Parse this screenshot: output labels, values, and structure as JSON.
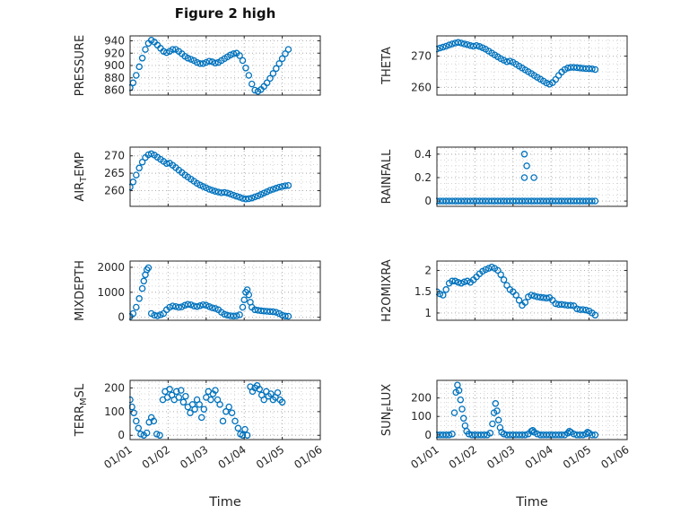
{
  "title": "Figure 2 high",
  "style": {
    "marker_color": "#0072BD",
    "axis_color": "#262626",
    "grid_major_color": "#b0b0b0",
    "grid_minor_color": "#d4d4d4",
    "plot_bg": "#ffffff"
  },
  "time_axis": {
    "label": "Time",
    "ticklabels": [
      "01/01",
      "01/02",
      "01/03",
      "01/04",
      "01/05",
      "01/06"
    ]
  },
  "chart_data": [
    {
      "type": "scatter",
      "ylabel": "PRESSURE",
      "ylabel_parts": [
        {
          "text": "PRESSURE",
          "sub": false
        }
      ],
      "yticks": [
        860,
        880,
        900,
        920,
        940
      ],
      "yticklabels": [
        "860",
        "880",
        "900",
        "920",
        "940"
      ],
      "ylim": [
        852,
        948
      ],
      "yminor": 10,
      "xlim": [
        0,
        5
      ],
      "xticks": [
        0,
        1,
        2,
        3,
        4,
        5
      ],
      "xminor": 0.25,
      "x": [
        0,
        0.08,
        0.16,
        0.24,
        0.32,
        0.4,
        0.48,
        0.56,
        0.64,
        0.72,
        0.8,
        0.88,
        0.96,
        1.04,
        1.12,
        1.2,
        1.28,
        1.36,
        1.44,
        1.52,
        1.6,
        1.68,
        1.76,
        1.84,
        1.92,
        2,
        2.08,
        2.16,
        2.24,
        2.32,
        2.4,
        2.48,
        2.56,
        2.64,
        2.72,
        2.8,
        2.88,
        2.96,
        3.04,
        3.12,
        3.2,
        3.28,
        3.36,
        3.44,
        3.52,
        3.6,
        3.68,
        3.76,
        3.84,
        3.92,
        4,
        4.08,
        4.16
      ],
      "y": [
        864,
        872,
        884,
        898,
        912,
        926,
        936,
        941,
        938,
        933,
        928,
        923,
        921,
        923,
        926,
        926,
        923,
        919,
        915,
        912,
        910,
        908,
        905,
        903,
        903,
        905,
        907,
        906,
        904,
        905,
        908,
        911,
        914,
        917,
        919,
        920,
        916,
        908,
        896,
        884,
        870,
        860,
        858,
        861,
        866,
        872,
        879,
        887,
        895,
        903,
        911,
        919,
        926
      ]
    },
    {
      "type": "scatter",
      "ylabel": "THETA",
      "ylabel_parts": [
        {
          "text": "THETA",
          "sub": false
        }
      ],
      "yticks": [
        260,
        270
      ],
      "yticklabels": [
        "260",
        "270"
      ],
      "ylim": [
        257.5,
        276.5
      ],
      "yminor": 2.5,
      "xlim": [
        0,
        5
      ],
      "xticks": [
        0,
        1,
        2,
        3,
        4,
        5
      ],
      "xminor": 0.25,
      "x": [
        0,
        0.08,
        0.16,
        0.24,
        0.32,
        0.4,
        0.48,
        0.56,
        0.64,
        0.72,
        0.8,
        0.88,
        0.96,
        1.04,
        1.12,
        1.2,
        1.28,
        1.36,
        1.44,
        1.52,
        1.6,
        1.68,
        1.76,
        1.84,
        1.92,
        2,
        2.08,
        2.16,
        2.24,
        2.32,
        2.4,
        2.48,
        2.56,
        2.64,
        2.72,
        2.8,
        2.88,
        2.96,
        3.04,
        3.12,
        3.2,
        3.28,
        3.36,
        3.44,
        3.52,
        3.6,
        3.68,
        3.76,
        3.84,
        3.92,
        4,
        4.08,
        4.16
      ],
      "y": [
        272.3,
        272.6,
        272.9,
        273.2,
        273.6,
        273.9,
        274.2,
        274.4,
        274.2,
        273.9,
        273.7,
        273.4,
        273.2,
        273.4,
        273.1,
        272.7,
        272.2,
        271.6,
        271,
        270.4,
        269.8,
        269.2,
        268.7,
        268.2,
        268.4,
        268,
        267.4,
        266.8,
        266.2,
        265.6,
        265,
        264.4,
        263.8,
        263.2,
        262.6,
        262,
        261.4,
        261,
        261.5,
        262.5,
        263.8,
        264.9,
        265.7,
        266.2,
        266.4,
        266.4,
        266.3,
        266.2,
        266.1,
        266,
        266,
        265.9,
        265.7
      ]
    },
    {
      "type": "scatter",
      "ylabel": "AIR_TEMP",
      "ylabel_parts": [
        {
          "text": "AIR",
          "sub": false
        },
        {
          "text": "T",
          "sub": true
        },
        {
          "text": "EMP",
          "sub": false
        }
      ],
      "yticks": [
        260,
        265,
        270
      ],
      "yticklabels": [
        "260",
        "265",
        "270"
      ],
      "ylim": [
        255.5,
        272.5
      ],
      "yminor": 2.5,
      "xlim": [
        0,
        5
      ],
      "xticks": [
        0,
        1,
        2,
        3,
        4,
        5
      ],
      "xminor": 0.25,
      "x": [
        0,
        0.08,
        0.16,
        0.24,
        0.32,
        0.4,
        0.48,
        0.56,
        0.64,
        0.72,
        0.8,
        0.88,
        0.96,
        1.04,
        1.12,
        1.2,
        1.28,
        1.36,
        1.44,
        1.52,
        1.6,
        1.68,
        1.76,
        1.84,
        1.92,
        2,
        2.08,
        2.16,
        2.24,
        2.32,
        2.4,
        2.48,
        2.56,
        2.64,
        2.72,
        2.8,
        2.88,
        2.96,
        3.04,
        3.12,
        3.2,
        3.28,
        3.36,
        3.44,
        3.52,
        3.6,
        3.68,
        3.76,
        3.84,
        3.92,
        4,
        4.08,
        4.16
      ],
      "y": [
        261,
        262.5,
        264.5,
        266.5,
        268.2,
        269.5,
        270.3,
        270.6,
        270.2,
        269.6,
        269,
        268.4,
        267.8,
        267.9,
        267.3,
        266.6,
        265.9,
        265.2,
        264.5,
        263.9,
        263.3,
        262.7,
        262.1,
        261.6,
        261.2,
        260.8,
        260.4,
        260.1,
        259.8,
        259.6,
        259.4,
        259.5,
        259.3,
        259,
        258.7,
        258.4,
        258.1,
        257.8,
        257.6,
        257.7,
        257.9,
        258.2,
        258.5,
        258.9,
        259.3,
        259.7,
        260.1,
        260.4,
        260.7,
        261,
        261.2,
        261.4,
        261.5
      ]
    },
    {
      "type": "scatter",
      "ylabel": "RAINFALL",
      "ylabel_parts": [
        {
          "text": "RAINFALL",
          "sub": false
        }
      ],
      "yticks": [
        0,
        0.2,
        0.4
      ],
      "yticklabels": [
        "0",
        "0.2",
        "0.4"
      ],
      "ylim": [
        -0.045,
        0.46
      ],
      "yminor": 0.05,
      "xlim": [
        0,
        5
      ],
      "xticks": [
        0,
        1,
        2,
        3,
        4,
        5
      ],
      "xminor": 0.25,
      "x": [
        0,
        0.08,
        0.16,
        0.24,
        0.32,
        0.4,
        0.48,
        0.56,
        0.64,
        0.72,
        0.8,
        0.88,
        0.96,
        1.04,
        1.12,
        1.2,
        1.28,
        1.36,
        1.44,
        1.52,
        1.6,
        1.68,
        1.76,
        1.84,
        1.92,
        2,
        2.08,
        2.16,
        2.24,
        2.32,
        2.4,
        2.48,
        2.56,
        2.64,
        2.72,
        2.8,
        2.88,
        2.96,
        3.04,
        3.12,
        3.2,
        3.28,
        3.36,
        3.44,
        3.52,
        3.6,
        3.68,
        3.76,
        3.84,
        3.92,
        4,
        4.08,
        4.16,
        2.3,
        2.36,
        2.3,
        2.55
      ],
      "y": [
        0,
        0,
        0,
        0,
        0,
        0,
        0,
        0,
        0,
        0,
        0,
        0,
        0,
        0,
        0,
        0,
        0,
        0,
        0,
        0,
        0,
        0,
        0,
        0,
        0,
        0,
        0,
        0,
        0,
        0,
        0,
        0,
        0,
        0,
        0,
        0,
        0,
        0,
        0,
        0,
        0,
        0,
        0,
        0,
        0,
        0,
        0,
        0,
        0,
        0,
        0,
        0,
        0,
        0.4,
        0.3,
        0.2,
        0.2
      ]
    },
    {
      "type": "scatter",
      "ylabel": "MIXDEPTH",
      "ylabel_parts": [
        {
          "text": "MIXDEPTH",
          "sub": false
        }
      ],
      "yticks": [
        0,
        1000,
        2000
      ],
      "yticklabels": [
        "0",
        "1000",
        "2000"
      ],
      "ylim": [
        -120,
        2250
      ],
      "yminor": 250,
      "xlim": [
        0,
        5
      ],
      "xticks": [
        0,
        1,
        2,
        3,
        4,
        5
      ],
      "xminor": 0.25,
      "x": [
        0,
        0.08,
        0.16,
        0.24,
        0.32,
        0.36,
        0.4,
        0.44,
        0.48,
        0.56,
        0.64,
        0.72,
        0.8,
        0.88,
        0.96,
        1.04,
        1.12,
        1.2,
        1.28,
        1.36,
        1.44,
        1.52,
        1.6,
        1.68,
        1.76,
        1.84,
        1.92,
        2,
        2.08,
        2.16,
        2.24,
        2.32,
        2.4,
        2.48,
        2.56,
        2.64,
        2.72,
        2.8,
        2.88,
        2.96,
        3,
        3.04,
        3.08,
        3.12,
        3.16,
        3.2,
        3.28,
        3.36,
        3.44,
        3.52,
        3.6,
        3.68,
        3.76,
        3.84,
        3.92,
        4,
        4.08,
        4.16
      ],
      "y": [
        30,
        150,
        400,
        750,
        1150,
        1450,
        1700,
        1900,
        1980,
        150,
        80,
        60,
        100,
        150,
        300,
        400,
        450,
        430,
        400,
        420,
        480,
        520,
        500,
        450,
        430,
        460,
        500,
        480,
        430,
        380,
        350,
        300,
        200,
        120,
        80,
        60,
        50,
        60,
        100,
        400,
        700,
        1000,
        1100,
        900,
        600,
        400,
        300,
        280,
        260,
        250,
        240,
        230,
        220,
        200,
        150,
        80,
        50,
        40
      ]
    },
    {
      "type": "scatter",
      "ylabel": "H2OMIXRA",
      "ylabel_parts": [
        {
          "text": "H2OMIXRA",
          "sub": false
        }
      ],
      "yticks": [
        1,
        1.5,
        2
      ],
      "yticklabels": [
        "1",
        "1.5",
        "2"
      ],
      "ylim": [
        0.83,
        2.22
      ],
      "yminor": 0.125,
      "xlim": [
        0,
        5
      ],
      "xticks": [
        0,
        1,
        2,
        3,
        4,
        5
      ],
      "xminor": 0.25,
      "x": [
        0,
        0.08,
        0.16,
        0.24,
        0.32,
        0.4,
        0.48,
        0.56,
        0.64,
        0.72,
        0.8,
        0.88,
        0.96,
        1.04,
        1.12,
        1.2,
        1.28,
        1.36,
        1.44,
        1.52,
        1.6,
        1.68,
        1.76,
        1.84,
        1.92,
        2,
        2.08,
        2.16,
        2.24,
        2.32,
        2.4,
        2.48,
        2.56,
        2.64,
        2.72,
        2.8,
        2.88,
        2.96,
        3.04,
        3.12,
        3.2,
        3.28,
        3.36,
        3.44,
        3.52,
        3.6,
        3.68,
        3.76,
        3.84,
        3.92,
        4,
        4.08,
        4.16
      ],
      "y": [
        1.5,
        1.45,
        1.42,
        1.55,
        1.7,
        1.75,
        1.75,
        1.72,
        1.7,
        1.73,
        1.75,
        1.72,
        1.78,
        1.85,
        1.92,
        1.98,
        2.02,
        2.05,
        2.08,
        2.05,
        2,
        1.9,
        1.78,
        1.65,
        1.55,
        1.5,
        1.42,
        1.3,
        1.18,
        1.25,
        1.38,
        1.42,
        1.4,
        1.38,
        1.37,
        1.36,
        1.35,
        1.36,
        1.3,
        1.22,
        1.2,
        1.2,
        1.19,
        1.18,
        1.18,
        1.17,
        1.1,
        1.08,
        1.08,
        1.07,
        1.05,
        1,
        0.95
      ]
    },
    {
      "type": "scatter",
      "ylabel": "TERR_MSL",
      "ylabel_parts": [
        {
          "text": "TERR",
          "sub": false
        },
        {
          "text": "M",
          "sub": true
        },
        {
          "text": "SL",
          "sub": false
        }
      ],
      "xlabel": "Time",
      "yticks": [
        0,
        100,
        200
      ],
      "yticklabels": [
        "0",
        "100",
        "200"
      ],
      "ylim": [
        -18,
        232
      ],
      "yminor": 25,
      "xlim": [
        0,
        5
      ],
      "xticks": [
        0,
        1,
        2,
        3,
        4,
        5
      ],
      "xminor": 0.25,
      "x": [
        0,
        0.05,
        0.1,
        0.16,
        0.22,
        0.28,
        0.36,
        0.44,
        0.5,
        0.56,
        0.62,
        0.7,
        0.78,
        0.86,
        0.92,
        0.98,
        1.04,
        1.1,
        1.16,
        1.22,
        1.28,
        1.34,
        1.4,
        1.46,
        1.52,
        1.58,
        1.64,
        1.7,
        1.76,
        1.82,
        1.88,
        1.94,
        2,
        2.06,
        2.12,
        2.18,
        2.24,
        2.3,
        2.36,
        2.44,
        2.52,
        2.6,
        2.68,
        2.76,
        2.84,
        2.9,
        2.96,
        3.02,
        3.08,
        3.16,
        3.22,
        3.28,
        3.34,
        3.4,
        3.46,
        3.52,
        3.58,
        3.64,
        3.7,
        3.76,
        3.82,
        3.88,
        3.94,
        4
      ],
      "y": [
        150,
        120,
        95,
        60,
        30,
        5,
        0,
        10,
        55,
        75,
        60,
        5,
        0,
        150,
        185,
        160,
        195,
        170,
        150,
        185,
        160,
        190,
        140,
        165,
        120,
        95,
        130,
        110,
        150,
        130,
        75,
        110,
        160,
        185,
        150,
        175,
        190,
        150,
        130,
        60,
        100,
        120,
        95,
        60,
        30,
        5,
        0,
        25,
        0,
        205,
        185,
        200,
        210,
        195,
        170,
        150,
        185,
        165,
        175,
        150,
        160,
        180,
        150,
        140
      ]
    },
    {
      "type": "scatter",
      "ylabel": "SUN_FLUX",
      "ylabel_parts": [
        {
          "text": "SUN",
          "sub": false
        },
        {
          "text": "F",
          "sub": true
        },
        {
          "text": "LUX",
          "sub": false
        }
      ],
      "xlabel": "Time",
      "yticks": [
        0,
        100,
        200
      ],
      "yticklabels": [
        "0",
        "100",
        "200"
      ],
      "ylim": [
        -25,
        295
      ],
      "yminor": 25,
      "xlim": [
        0,
        5
      ],
      "xticks": [
        0,
        1,
        2,
        3,
        4,
        5
      ],
      "xminor": 0.25,
      "x": [
        0,
        0.08,
        0.16,
        0.24,
        0.32,
        0.4,
        0.46,
        0.5,
        0.54,
        0.58,
        0.62,
        0.66,
        0.7,
        0.74,
        0.78,
        0.84,
        0.92,
        1,
        1.08,
        1.16,
        1.24,
        1.32,
        1.4,
        1.46,
        1.5,
        1.54,
        1.58,
        1.62,
        1.66,
        1.7,
        1.76,
        1.84,
        1.92,
        2,
        2.08,
        2.16,
        2.24,
        2.32,
        2.4,
        2.48,
        2.52,
        2.56,
        2.64,
        2.72,
        2.8,
        2.88,
        2.96,
        3.04,
        3.12,
        3.2,
        3.28,
        3.36,
        3.44,
        3.48,
        3.52,
        3.6,
        3.68,
        3.76,
        3.84,
        3.92,
        3.96,
        4,
        4.08,
        4.16
      ],
      "y": [
        0,
        0,
        0,
        0,
        0,
        5,
        120,
        230,
        270,
        240,
        190,
        140,
        90,
        50,
        20,
        5,
        0,
        0,
        0,
        0,
        0,
        0,
        10,
        60,
        120,
        170,
        130,
        80,
        40,
        15,
        5,
        0,
        0,
        0,
        0,
        0,
        0,
        0,
        5,
        20,
        25,
        15,
        5,
        0,
        0,
        0,
        0,
        0,
        0,
        0,
        0,
        0,
        10,
        20,
        15,
        5,
        0,
        0,
        0,
        5,
        15,
        10,
        0,
        0
      ]
    }
  ]
}
